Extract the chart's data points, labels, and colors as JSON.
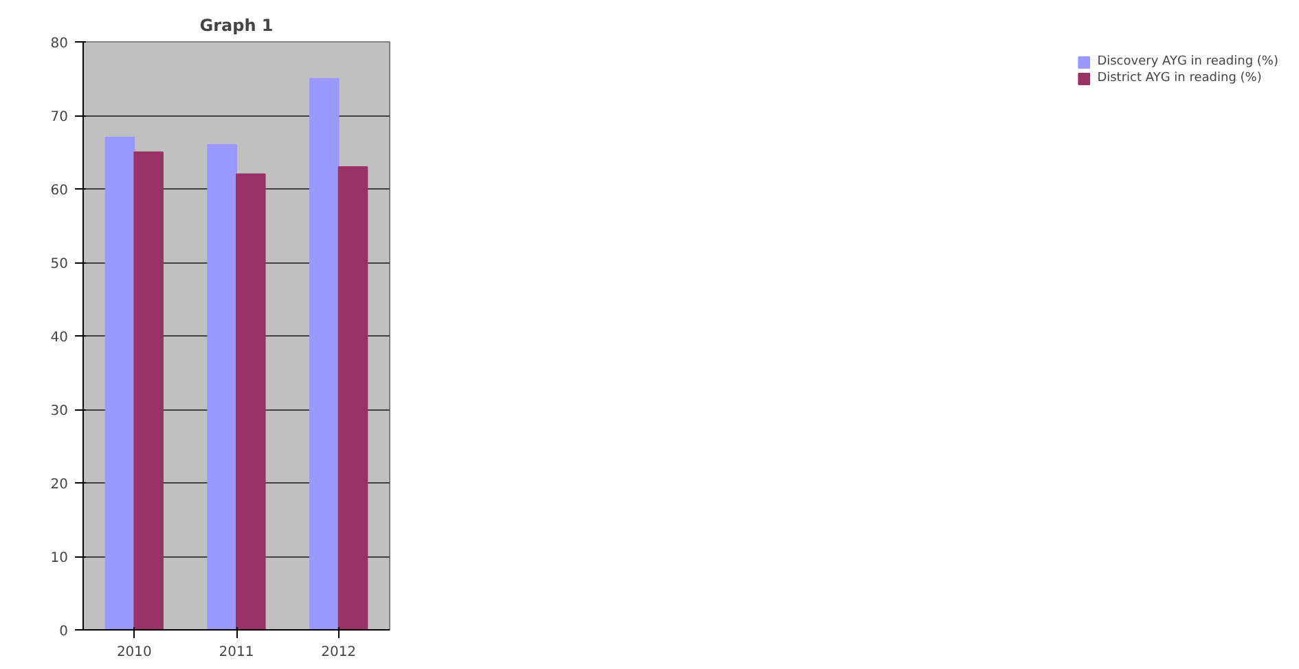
{
  "chart_data": {
    "type": "bar",
    "title": "Graph 1",
    "categories": [
      "2010",
      "2011",
      "2012"
    ],
    "series": [
      {
        "name": "Discovery AYG in reading (%)",
        "color": "#9999ff",
        "values": [
          67,
          66,
          75
        ]
      },
      {
        "name": "District AYG in reading (%)",
        "color": "#993366",
        "values": [
          65,
          62,
          63
        ]
      }
    ],
    "ylim": [
      0,
      80
    ],
    "yticks": [
      0,
      10,
      20,
      30,
      40,
      50,
      60,
      70,
      80
    ],
    "grid": "y",
    "legend": "right"
  }
}
